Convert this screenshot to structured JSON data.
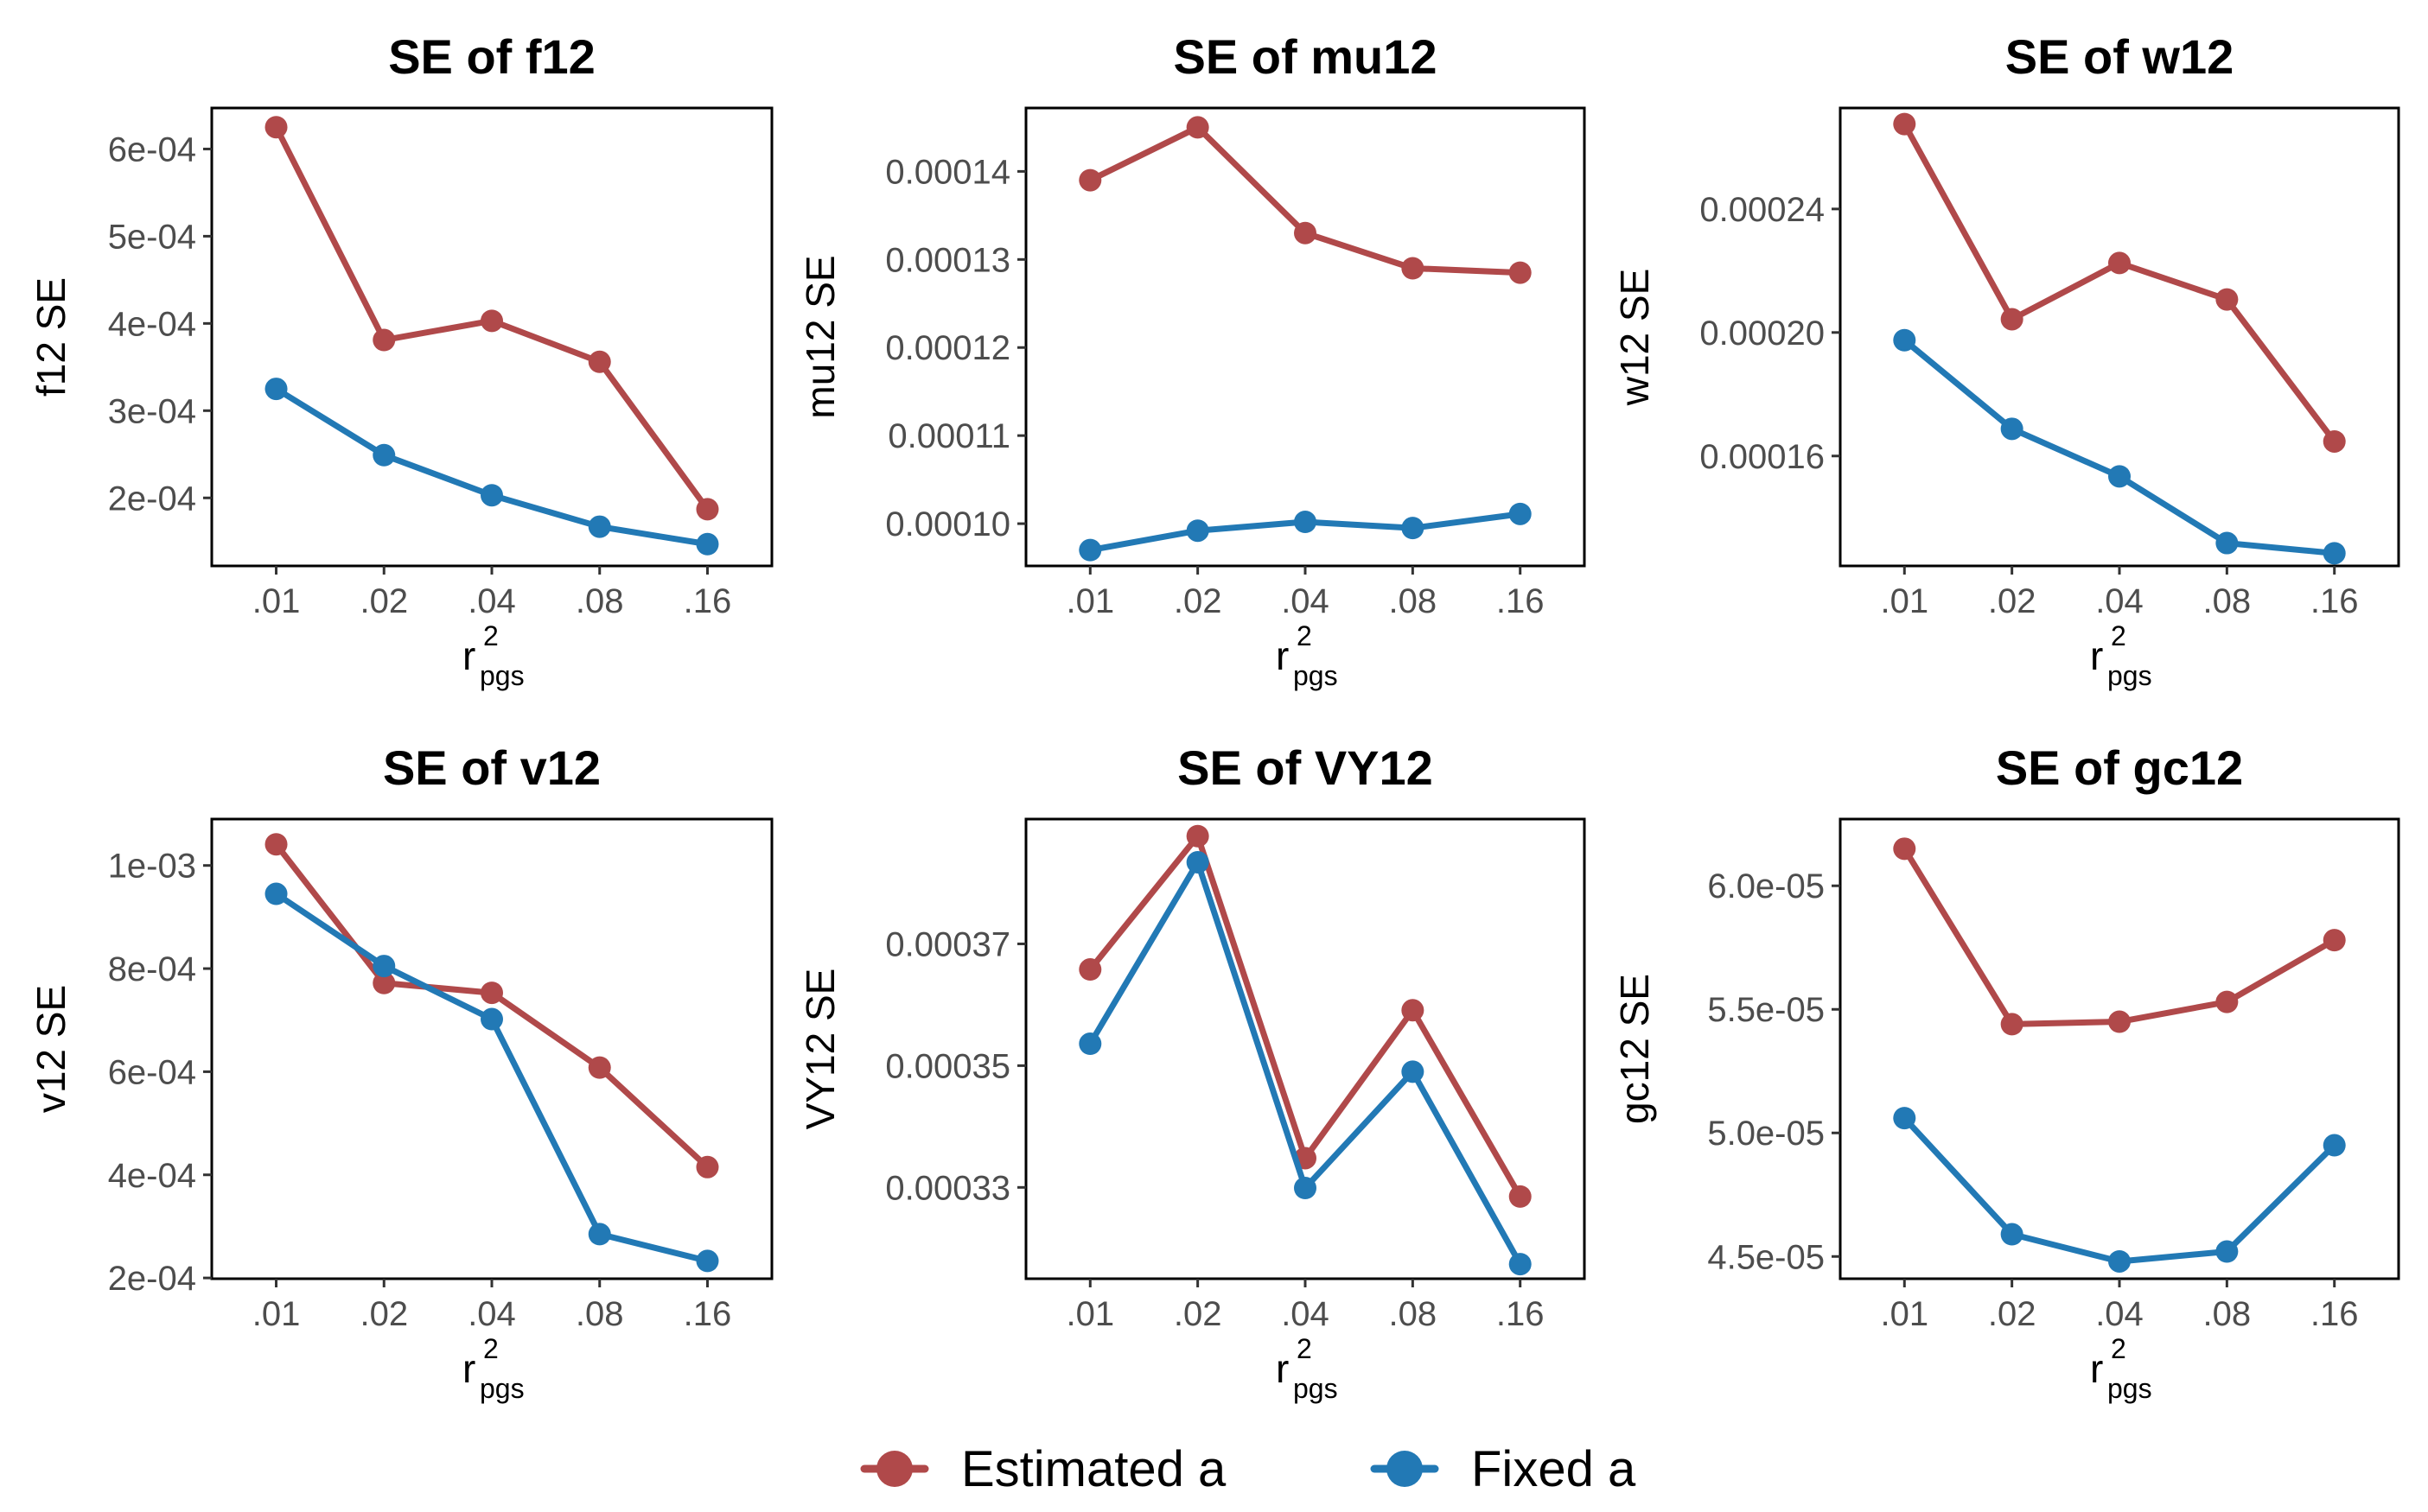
{
  "colors": {
    "estimated": "#B0494A",
    "fixed": "#2279B5"
  },
  "legend": {
    "items": [
      {
        "label": "Estimated a",
        "color": "#B0494A"
      },
      {
        "label": "Fixed a",
        "color": "#2279B5"
      }
    ]
  },
  "chart_data": [
    {
      "type": "line",
      "title": "SE of f12",
      "ylabel": "f12 SE",
      "xlabel": "r",
      "xlabel_sup": "2",
      "xlabel_sub": "pgs",
      "categories": [
        ".01",
        ".02",
        ".04",
        ".08",
        ".16"
      ],
      "yticks": [
        0.0002,
        0.0003,
        0.0004,
        0.0005,
        0.0006
      ],
      "ytick_labels": [
        "2e-04",
        "3e-04",
        "4e-04",
        "5e-04",
        "6e-04"
      ],
      "ylim": [
        0.000122,
        0.000647
      ],
      "grid": false,
      "series": [
        {
          "name": "Estimated a",
          "color": "#B0494A",
          "values": [
            0.000625,
            0.000381,
            0.000403,
            0.000356,
            0.000187
          ]
        },
        {
          "name": "Fixed a",
          "color": "#2279B5",
          "values": [
            0.000325,
            0.000249,
            0.000203,
            0.000167,
            0.000147
          ]
        }
      ]
    },
    {
      "type": "line",
      "title": "SE of mu12",
      "ylabel": "mu12 SE",
      "xlabel": "r",
      "xlabel_sup": "2",
      "xlabel_sub": "pgs",
      "categories": [
        ".01",
        ".02",
        ".04",
        ".08",
        ".16"
      ],
      "yticks": [
        0.0001,
        0.00011,
        0.00012,
        0.00013,
        0.00014
      ],
      "ytick_labels": [
        "0.00010",
        "0.00011",
        "0.00012",
        "0.00013",
        "0.00014"
      ],
      "ylim": [
        9.52e-05,
        0.0001472
      ],
      "grid": false,
      "series": [
        {
          "name": "Estimated a",
          "color": "#B0494A",
          "values": [
            0.000139,
            0.000145,
            0.000133,
            0.000129,
            0.0001285
          ]
        },
        {
          "name": "Fixed a",
          "color": "#2279B5",
          "values": [
            9.7e-05,
            9.92e-05,
            0.0001002,
            9.95e-05,
            0.0001011
          ]
        }
      ]
    },
    {
      "type": "line",
      "title": "SE of w12",
      "ylabel": "w12 SE",
      "xlabel": "r",
      "xlabel_sup": "2",
      "xlabel_sub": "pgs",
      "categories": [
        ".01",
        ".02",
        ".04",
        ".08",
        ".16"
      ],
      "yticks": [
        0.00016,
        0.0002,
        0.00024
      ],
      "ytick_labels": [
        "0.00016",
        "0.00020",
        "0.00024"
      ],
      "ylim": [
        0.0001244,
        0.0002727
      ],
      "grid": false,
      "series": [
        {
          "name": "Estimated a",
          "color": "#B0494A",
          "values": [
            0.0002675,
            0.0002043,
            0.0002225,
            0.0002107,
            0.0001647
          ]
        },
        {
          "name": "Fixed a",
          "color": "#2279B5",
          "values": [
            0.0001975,
            0.0001688,
            0.0001534,
            0.0001318,
            0.0001285
          ]
        }
      ]
    },
    {
      "type": "line",
      "title": "SE of v12",
      "ylabel": "v12 SE",
      "xlabel": "r",
      "xlabel_sup": "2",
      "xlabel_sub": "pgs",
      "categories": [
        ".01",
        ".02",
        ".04",
        ".08",
        ".16"
      ],
      "yticks": [
        0.0002,
        0.0004,
        0.0006,
        0.0008,
        0.001
      ],
      "ytick_labels": [
        "2e-04",
        "4e-04",
        "6e-04",
        "8e-04",
        "1e-03"
      ],
      "ylim": [
        0.0001985,
        0.00109
      ],
      "grid": false,
      "series": [
        {
          "name": "Estimated a",
          "color": "#B0494A",
          "values": [
            0.001041,
            0.000772,
            0.000753,
            0.000608,
            0.000415
          ]
        },
        {
          "name": "Fixed a",
          "color": "#2279B5",
          "values": [
            0.000945,
            0.000805,
            0.000702,
            0.000285,
            0.000233
          ]
        }
      ]
    },
    {
      "type": "line",
      "title": "SE of VY12",
      "ylabel": "VY12 SE",
      "xlabel": "r",
      "xlabel_sup": "2",
      "xlabel_sub": "pgs",
      "categories": [
        ".01",
        ".02",
        ".04",
        ".08",
        ".16"
      ],
      "yticks": [
        0.00033,
        0.00035,
        0.00037
      ],
      "ytick_labels": [
        "0.00033",
        "0.00035",
        "0.00037"
      ],
      "ylim": [
        0.000315,
        0.0003905
      ],
      "grid": false,
      "series": [
        {
          "name": "Estimated a",
          "color": "#B0494A",
          "values": [
            0.0003658,
            0.0003877,
            0.0003348,
            0.0003591,
            0.0003285
          ]
        },
        {
          "name": "Fixed a",
          "color": "#2279B5",
          "values": [
            0.0003536,
            0.0003834,
            0.0003299,
            0.000349,
            0.0003174
          ]
        }
      ]
    },
    {
      "type": "line",
      "title": "SE of gc12",
      "ylabel": "gc12 SE",
      "xlabel": "r",
      "xlabel_sup": "2",
      "xlabel_sub": "pgs",
      "categories": [
        ".01",
        ".02",
        ".04",
        ".08",
        ".16"
      ],
      "yticks": [
        4.5e-05,
        5e-05,
        5.5e-05,
        6e-05
      ],
      "ytick_labels": [
        "4.5e-05",
        "5.0e-05",
        "5.5e-05",
        "6.0e-05"
      ],
      "ylim": [
        4.41e-05,
        6.27e-05
      ],
      "grid": false,
      "series": [
        {
          "name": "Estimated a",
          "color": "#B0494A",
          "values": [
            6.15e-05,
            5.44e-05,
            5.45e-05,
            5.53e-05,
            5.78e-05
          ]
        },
        {
          "name": "Fixed a",
          "color": "#2279B5",
          "values": [
            5.06e-05,
            4.59e-05,
            4.48e-05,
            4.52e-05,
            4.95e-05
          ]
        }
      ]
    }
  ]
}
